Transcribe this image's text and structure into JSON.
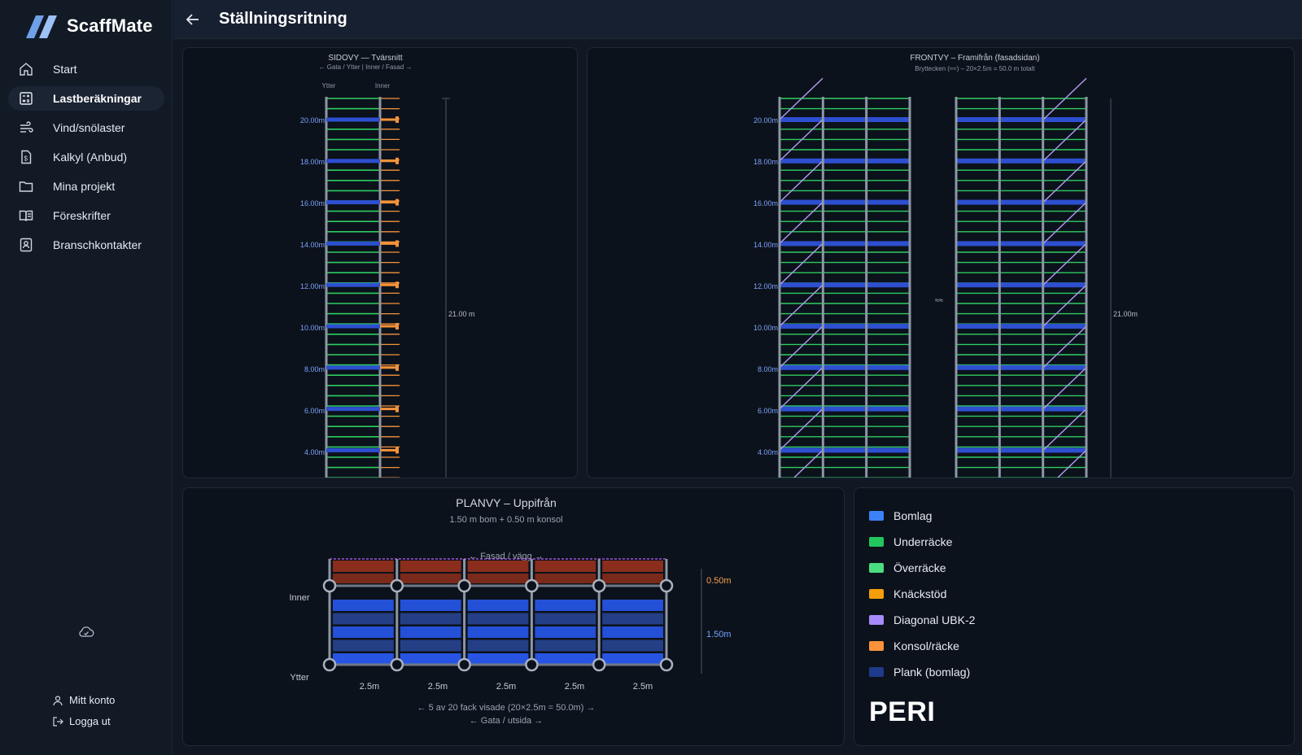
{
  "app": {
    "name": "ScaffMate"
  },
  "header": {
    "title": "Ställningsritning"
  },
  "sidebar": {
    "items": [
      {
        "label": "Start",
        "icon": "home-icon",
        "active": false
      },
      {
        "label": "Lastberäkningar",
        "icon": "calculator-icon",
        "active": true
      },
      {
        "label": "Vind/snölaster",
        "icon": "wind-icon",
        "active": false
      },
      {
        "label": "Kalkyl (Anbud)",
        "icon": "invoice-icon",
        "active": false
      },
      {
        "label": "Mina projekt",
        "icon": "folder-icon",
        "active": false
      },
      {
        "label": "Föreskrifter",
        "icon": "book-icon",
        "active": false
      },
      {
        "label": "Branschkontakter",
        "icon": "contacts-icon",
        "active": false
      }
    ],
    "account_label": "Mitt konto",
    "logout_label": "Logga ut"
  },
  "side_view": {
    "title": "SIDOVY — Tvärsnitt",
    "subtitle": "← Gata / Ytter  |  Inner / Fasad →",
    "col_outer": "Ytter",
    "col_inner": "Inner",
    "levels": [
      "20.00m",
      "18.00m",
      "16.00m",
      "14.00m",
      "12.00m",
      "10.00m",
      "8.00m",
      "6.00m",
      "4.00m"
    ],
    "height_label": "21.00 m"
  },
  "front_view": {
    "title": "FRONTVY – Framifrån (fasadsidan)",
    "subtitle": "Bryttecken (≈≈) – 20×2.5m = 50.0 m totalt",
    "break_symbol": "≈≈",
    "levels": [
      "20.00m",
      "18.00m",
      "16.00m",
      "14.00m",
      "12.00m",
      "10.00m",
      "8.00m",
      "6.00m",
      "4.00m"
    ],
    "height_label": "21.00m"
  },
  "plan_view": {
    "title": "PLANVY – Uppifrån",
    "subtitle": "1.50 m bom + 0.50 m konsol",
    "facade_label": "← Fasad / vägg →",
    "inner_label": "Inner",
    "outer_label": "Ytter",
    "console_dim": "0.50m",
    "deck_dim": "1.50m",
    "bays": [
      "2.5m",
      "2.5m",
      "2.5m",
      "2.5m",
      "2.5m"
    ],
    "note": "← 5 av 20 fack visade (20×2.5m = 50.0m) →",
    "street_label": "← Gata / utsida →"
  },
  "legend": {
    "items": [
      {
        "label": "Bomlag",
        "color": "#3b82f6"
      },
      {
        "label": "Underräcke",
        "color": "#22c55e"
      },
      {
        "label": "Överräcke",
        "color": "#4ade80"
      },
      {
        "label": "Knäckstöd",
        "color": "#f59e0b"
      },
      {
        "label": "Diagonal UBK-2",
        "color": "#a78bfa"
      },
      {
        "label": "Konsol/räcke",
        "color": "#fb923c"
      },
      {
        "label": "Plank (bomlag)",
        "color": "#1e3a8a"
      }
    ],
    "brand": "PERI"
  }
}
